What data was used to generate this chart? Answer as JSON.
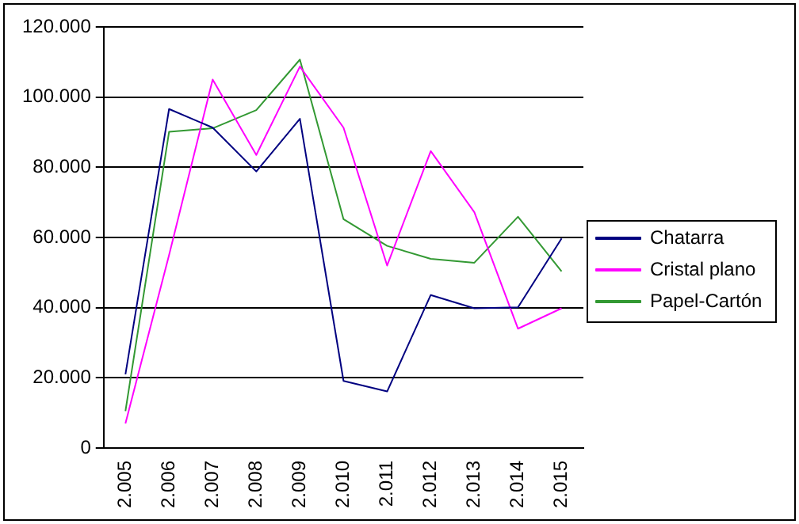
{
  "chart_data": {
    "type": "line",
    "categories": [
      "2.005",
      "2.006",
      "2.007",
      "2.008",
      "2.009",
      "2.010",
      "2.011",
      "2.012",
      "2.013",
      "2.014",
      "2.015"
    ],
    "series": [
      {
        "name": "Chatarra",
        "color": "#000080",
        "values": [
          21000,
          96600,
          91300,
          78800,
          93800,
          19100,
          16100,
          43600,
          39800,
          40100,
          59700
        ]
      },
      {
        "name": "Cristal plano",
        "color": "#ff00ff",
        "values": [
          7000,
          55000,
          105000,
          83500,
          108700,
          91300,
          52000,
          84600,
          67200,
          34000,
          39800
        ]
      },
      {
        "name": "Papel-Cartón",
        "color": "#339933",
        "values": [
          10500,
          90100,
          91100,
          96300,
          110700,
          65200,
          57600,
          53900,
          52800,
          65900,
          50300
        ]
      }
    ],
    "ylim": [
      0,
      120000
    ],
    "yticks": [
      0,
      {
        "value": 20000,
        "label": "20.000"
      },
      {
        "value": 40000,
        "label": "40.000"
      },
      {
        "value": 60000,
        "label": "60.000"
      },
      {
        "value": 80000,
        "label": "80.000"
      },
      {
        "value": 100000,
        "label": "100.000"
      },
      {
        "value": 120000,
        "label": "120.000"
      }
    ],
    "grid": "y",
    "legend": "right",
    "marker": "none",
    "line_style": "solid"
  }
}
